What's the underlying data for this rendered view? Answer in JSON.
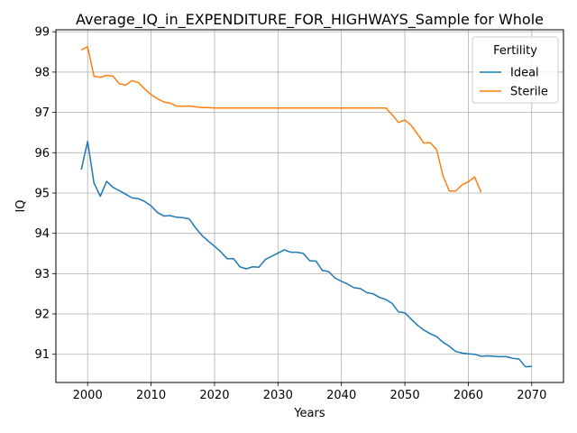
{
  "chart_data": {
    "type": "line",
    "title": "Average_IQ_in_EXPENDITURE_FOR_HIGHWAYS_Sample for Whole",
    "xlabel": "Years",
    "ylabel": "IQ",
    "xlim": [
      1995,
      2075
    ],
    "ylim": [
      90.3,
      99.05
    ],
    "xticks": [
      2000,
      2010,
      2020,
      2030,
      2040,
      2050,
      2060,
      2070
    ],
    "yticks": [
      91,
      92,
      93,
      94,
      95,
      96,
      97,
      98,
      99
    ],
    "grid": true,
    "legend": {
      "title": "Fertility",
      "placement": "top-right"
    },
    "series": [
      {
        "name": "Ideal",
        "color": "#1f77b4",
        "x": [
          1999,
          2000,
          2001,
          2002,
          2003,
          2004,
          2005,
          2006,
          2007,
          2008,
          2009,
          2010,
          2011,
          2012,
          2013,
          2014,
          2015,
          2016,
          2017,
          2018,
          2019,
          2020,
          2021,
          2022,
          2023,
          2024,
          2025,
          2026,
          2027,
          2028,
          2029,
          2030,
          2031,
          2032,
          2033,
          2034,
          2035,
          2036,
          2037,
          2038,
          2039,
          2040,
          2041,
          2042,
          2043,
          2044,
          2045,
          2046,
          2047,
          2048,
          2049,
          2050,
          2051,
          2052,
          2053,
          2054,
          2055,
          2056,
          2057,
          2058,
          2059,
          2060,
          2061,
          2062,
          2063,
          2064,
          2065,
          2066,
          2067,
          2068,
          2069,
          2070
        ],
        "values": [
          95.58,
          96.28,
          95.25,
          94.92,
          95.29,
          95.14,
          95.06,
          94.97,
          94.88,
          94.86,
          94.79,
          94.68,
          94.52,
          94.43,
          94.44,
          94.4,
          94.39,
          94.36,
          94.14,
          93.95,
          93.81,
          93.68,
          93.54,
          93.37,
          93.37,
          93.17,
          93.12,
          93.17,
          93.16,
          93.35,
          93.43,
          93.51,
          93.59,
          93.53,
          93.53,
          93.5,
          93.32,
          93.31,
          93.08,
          93.05,
          92.89,
          92.81,
          92.74,
          92.65,
          92.63,
          92.53,
          92.5,
          92.41,
          92.36,
          92.26,
          92.05,
          92.03,
          91.87,
          91.72,
          91.6,
          91.51,
          91.44,
          91.3,
          91.2,
          91.07,
          91.03,
          91.01,
          91.0,
          90.95,
          90.96,
          90.95,
          90.94,
          90.94,
          90.9,
          90.88,
          90.69,
          90.7
        ]
      },
      {
        "name": "Sterile",
        "color": "#ff7f0e",
        "x": [
          1999,
          2000,
          2001,
          2002,
          2003,
          2004,
          2005,
          2006,
          2007,
          2008,
          2009,
          2010,
          2011,
          2012,
          2013,
          2014,
          2015,
          2016,
          2017,
          2018,
          2019,
          2020,
          2021,
          2022,
          2023,
          2024,
          2025,
          2026,
          2027,
          2028,
          2029,
          2030,
          2031,
          2032,
          2033,
          2034,
          2035,
          2036,
          2037,
          2038,
          2039,
          2040,
          2041,
          2042,
          2043,
          2044,
          2045,
          2046,
          2047,
          2048,
          2049,
          2050,
          2051,
          2052,
          2053,
          2054,
          2055,
          2056,
          2057,
          2058,
          2059,
          2060,
          2061,
          2062
        ],
        "values": [
          98.55,
          98.63,
          97.9,
          97.87,
          97.92,
          97.9,
          97.71,
          97.68,
          97.79,
          97.74,
          97.58,
          97.44,
          97.34,
          97.26,
          97.23,
          97.16,
          97.15,
          97.16,
          97.14,
          97.12,
          97.12,
          97.11,
          97.11,
          97.11,
          97.11,
          97.11,
          97.11,
          97.11,
          97.11,
          97.11,
          97.11,
          97.11,
          97.11,
          97.11,
          97.11,
          97.11,
          97.11,
          97.11,
          97.11,
          97.11,
          97.11,
          97.11,
          97.11,
          97.11,
          97.11,
          97.11,
          97.11,
          97.11,
          97.11,
          96.94,
          96.75,
          96.81,
          96.68,
          96.46,
          96.24,
          96.25,
          96.08,
          95.43,
          95.05,
          95.05,
          95.2,
          95.28,
          95.4,
          95.02
        ]
      }
    ]
  }
}
